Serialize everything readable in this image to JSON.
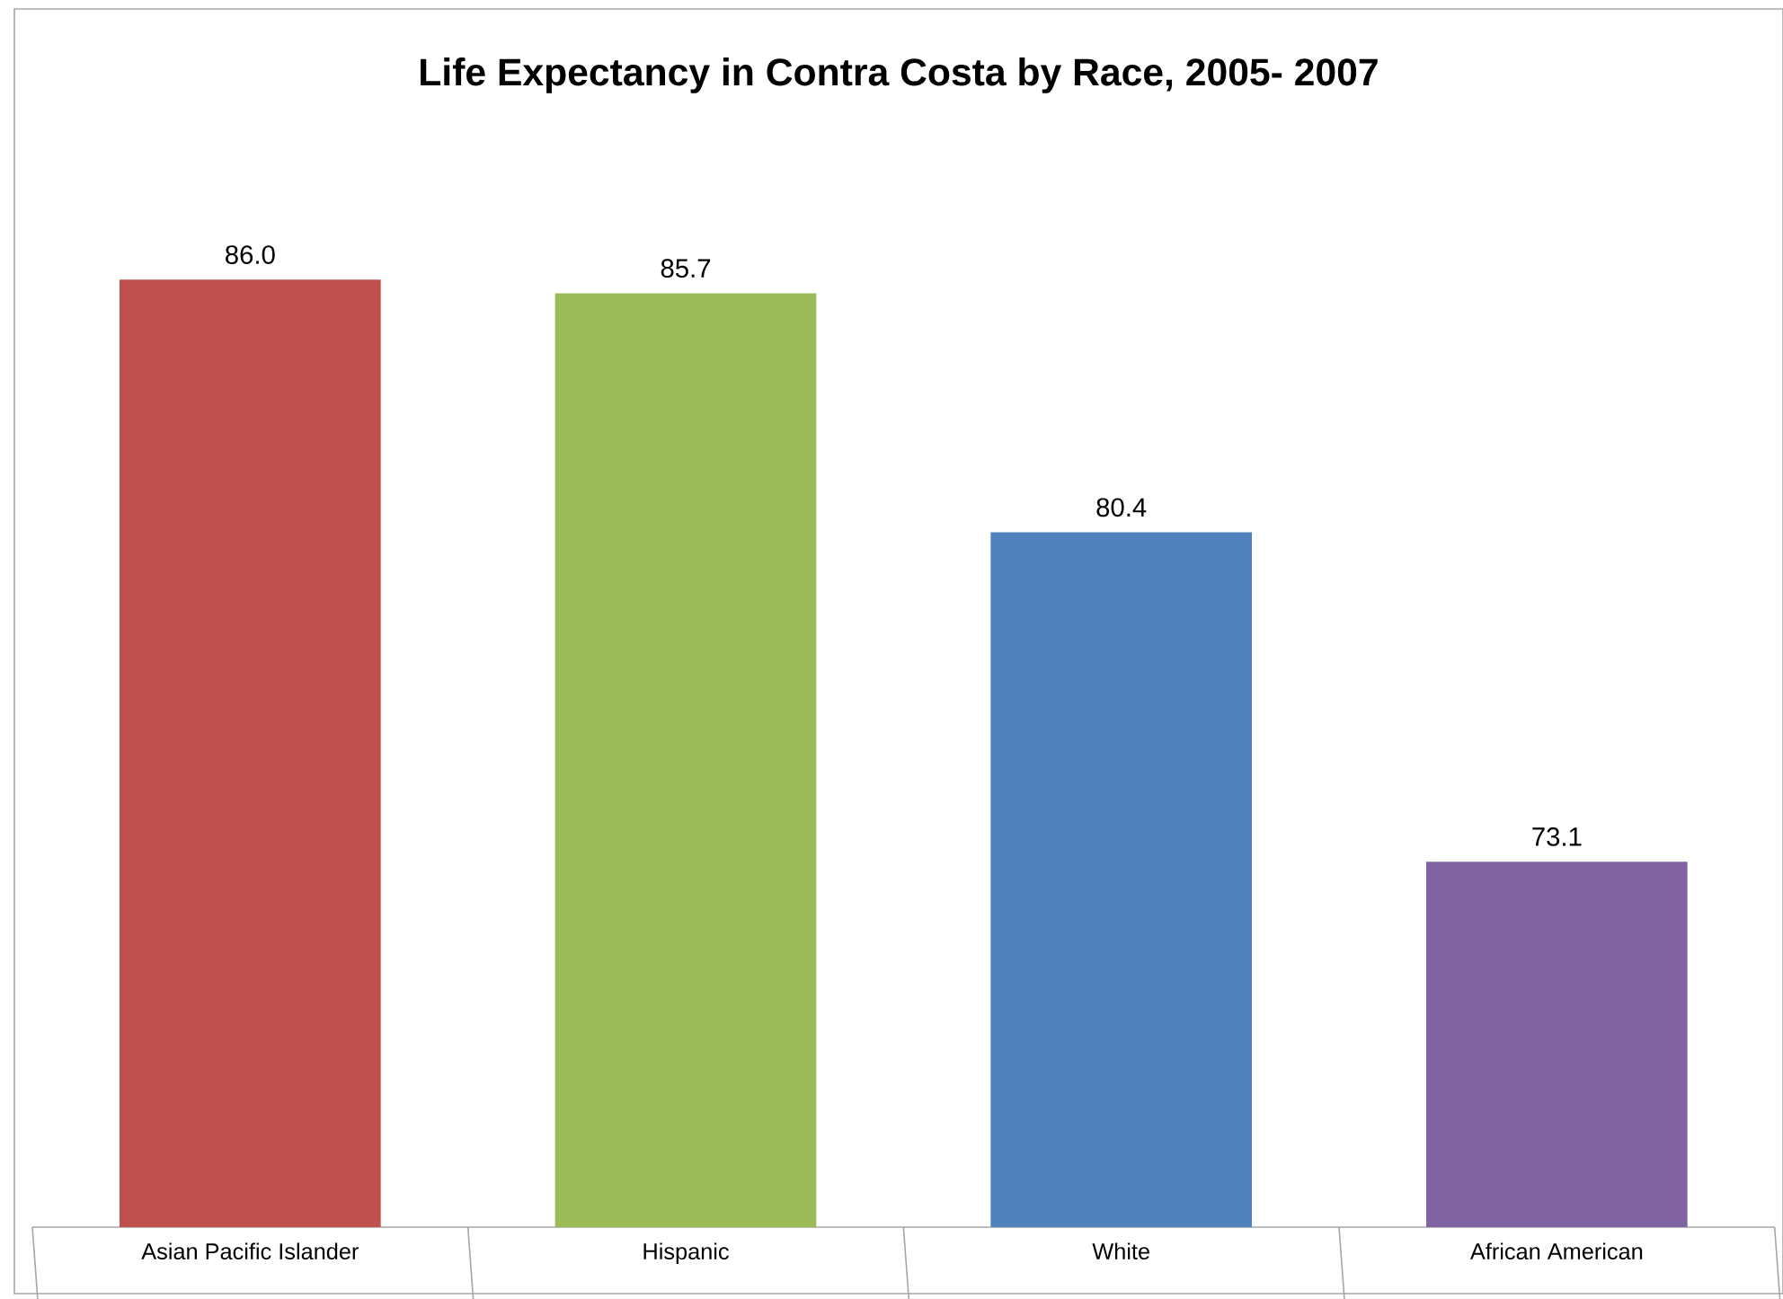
{
  "chart_data": {
    "type": "bar",
    "title": "Life Expectancy in Contra Costa by Race, 2005- 2007",
    "categories": [
      "Asian Pacific Islander",
      "Hispanic",
      "White",
      "African American"
    ],
    "values": [
      86.0,
      85.7,
      80.4,
      73.1
    ],
    "colors": [
      "#c0504d",
      "#9bbb59",
      "#4f81bd",
      "#8064a2"
    ],
    "ylim": [
      65,
      92
    ],
    "value_labels": [
      "86.0",
      "85.7",
      "80.4",
      "73.1"
    ],
    "tick_labels": "x"
  }
}
